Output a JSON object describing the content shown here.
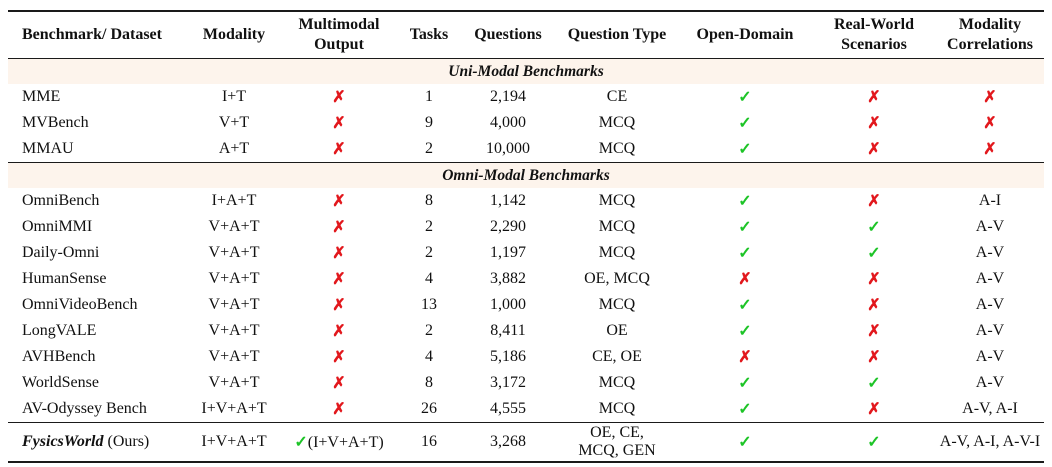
{
  "colors": {
    "check_green": "#1dc427",
    "cross_red": "#e2181d",
    "section_band_bg": "#fdf4ec",
    "rule_black": "#1a1a1a",
    "text": "#111111"
  },
  "icons": {
    "check": "✓",
    "cross": "✗"
  },
  "table": {
    "columns": [
      {
        "id": "benchmark",
        "label": "Benchmark/ Dataset"
      },
      {
        "id": "modality",
        "label": "Modality"
      },
      {
        "id": "multimodal_output",
        "label": "Multimodal\nOutput"
      },
      {
        "id": "tasks",
        "label": "Tasks"
      },
      {
        "id": "questions",
        "label": "Questions"
      },
      {
        "id": "question_type",
        "label": "Question Type"
      },
      {
        "id": "open_domain",
        "label": "Open-Domain"
      },
      {
        "id": "real_world",
        "label": "Real-World\nScenarios"
      },
      {
        "id": "modality_correlations",
        "label": "Modality\nCorrelations"
      }
    ],
    "sections": [
      {
        "title": "Uni-Modal Benchmarks",
        "rows": [
          {
            "benchmark": "MME",
            "modality": "I+T",
            "multimodal_output": "cross",
            "tasks": "1",
            "questions": "2,194",
            "question_type": "CE",
            "open_domain": "check",
            "real_world": "cross",
            "modality_correlations": "cross"
          },
          {
            "benchmark": "MVBench",
            "modality": "V+T",
            "multimodal_output": "cross",
            "tasks": "9",
            "questions": "4,000",
            "question_type": "MCQ",
            "open_domain": "check",
            "real_world": "cross",
            "modality_correlations": "cross"
          },
          {
            "benchmark": "MMAU",
            "modality": "A+T",
            "multimodal_output": "cross",
            "tasks": "2",
            "questions": "10,000",
            "question_type": "MCQ",
            "open_domain": "check",
            "real_world": "cross",
            "modality_correlations": "cross"
          }
        ]
      },
      {
        "title": "Omni-Modal Benchmarks",
        "rows": [
          {
            "benchmark": "OmniBench",
            "modality": "I+A+T",
            "multimodal_output": "cross",
            "tasks": "8",
            "questions": "1,142",
            "question_type": "MCQ",
            "open_domain": "check",
            "real_world": "cross",
            "modality_correlations": "A-I"
          },
          {
            "benchmark": "OmniMMI",
            "modality": "V+A+T",
            "multimodal_output": "cross",
            "tasks": "2",
            "questions": "2,290",
            "question_type": "MCQ",
            "open_domain": "check",
            "real_world": "check",
            "modality_correlations": "A-V"
          },
          {
            "benchmark": "Daily-Omni",
            "modality": "V+A+T",
            "multimodal_output": "cross",
            "tasks": "2",
            "questions": "1,197",
            "question_type": "MCQ",
            "open_domain": "check",
            "real_world": "check",
            "modality_correlations": "A-V"
          },
          {
            "benchmark": "HumanSense",
            "modality": "V+A+T",
            "multimodal_output": "cross",
            "tasks": "4",
            "questions": "3,882",
            "question_type": "OE, MCQ",
            "open_domain": "cross",
            "real_world": "cross",
            "modality_correlations": "A-V"
          },
          {
            "benchmark": "OmniVideoBench",
            "modality": "V+A+T",
            "multimodal_output": "cross",
            "tasks": "13",
            "questions": "1,000",
            "question_type": "MCQ",
            "open_domain": "check",
            "real_world": "cross",
            "modality_correlations": "A-V"
          },
          {
            "benchmark": "LongVALE",
            "modality": "V+A+T",
            "multimodal_output": "cross",
            "tasks": "2",
            "questions": "8,411",
            "question_type": "OE",
            "open_domain": "check",
            "real_world": "cross",
            "modality_correlations": "A-V"
          },
          {
            "benchmark": "AVHBench",
            "modality": "V+A+T",
            "multimodal_output": "cross",
            "tasks": "4",
            "questions": "5,186",
            "question_type": "CE, OE",
            "open_domain": "cross",
            "real_world": "cross",
            "modality_correlations": "A-V"
          },
          {
            "benchmark": "WorldSense",
            "modality": "V+A+T",
            "multimodal_output": "cross",
            "tasks": "8",
            "questions": "3,172",
            "question_type": "MCQ",
            "open_domain": "check",
            "real_world": "check",
            "modality_correlations": "A-V"
          },
          {
            "benchmark": "AV-Odyssey Bench",
            "modality": "I+V+A+T",
            "multimodal_output": "cross",
            "tasks": "26",
            "questions": "4,555",
            "question_type": "MCQ",
            "open_domain": "check",
            "real_world": "cross",
            "modality_correlations": "A-V, A-I"
          }
        ]
      }
    ],
    "ours_row": {
      "benchmark": {
        "emph": "FysicsWorld",
        "rest": " (Ours)"
      },
      "modality": "I+V+A+T",
      "multimodal_output": {
        "mark": "check",
        "text": "(I+V+A+T)"
      },
      "tasks": "16",
      "questions": "3,268",
      "question_type": "OE, CE,\nMCQ, GEN",
      "open_domain": "check",
      "real_world": "check",
      "modality_correlations": "A-V, A-I, A-V-I"
    }
  }
}
